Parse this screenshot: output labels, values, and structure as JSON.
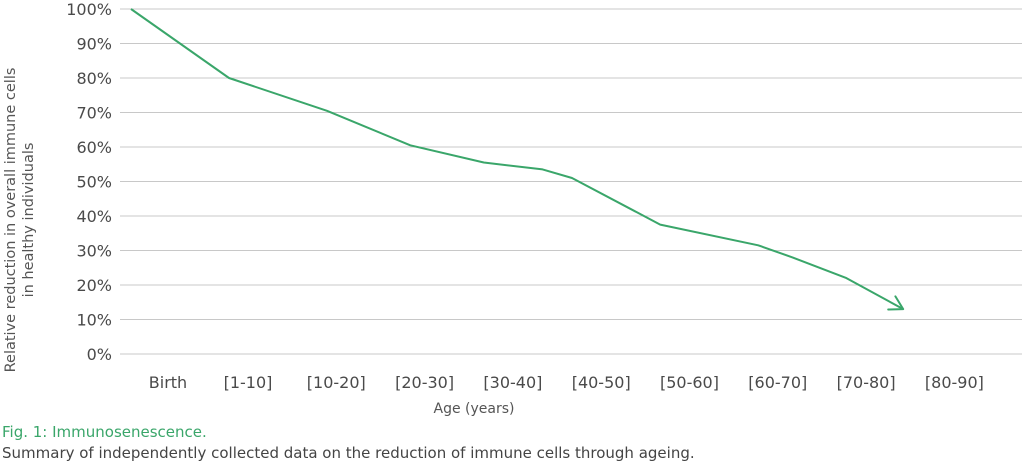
{
  "chart_data": {
    "type": "line",
    "categories": [
      "Birth",
      "[1-10]",
      "[10-20]",
      "[20-30]",
      "[30-40]",
      "[40-50]",
      "[50-60]",
      "[60-70]",
      "[70-80]",
      "[80-90]"
    ],
    "series": [
      {
        "x": [
          0,
          1,
          2,
          2.85,
          3.6,
          4.2,
          4.5,
          5.4,
          6.4,
          6.75,
          7.3,
          7.88
        ],
        "values": [
          100,
          80,
          70.5,
          60.5,
          55.5,
          53.5,
          51,
          37.5,
          31.5,
          28,
          22,
          13
        ]
      }
    ],
    "arrow_at_end": true,
    "xlabel": "Age (years)",
    "ylabel": [
      "Relative reduction in overall immune cells",
      "in healthy individuals"
    ],
    "yticks": [
      "0%",
      "10%",
      "20%",
      "30%",
      "40%",
      "50%",
      "60%",
      "70%",
      "80%",
      "90%",
      "100%"
    ],
    "ylim": [
      0,
      100
    ],
    "grid": true,
    "line_color": "#3aa66a",
    "grid_color": "#c8c8c8"
  },
  "caption": {
    "label": "Fig. 1: Immunosenescence.",
    "description": "Summary of independently collected data on the reduction of immune cells through ageing."
  }
}
